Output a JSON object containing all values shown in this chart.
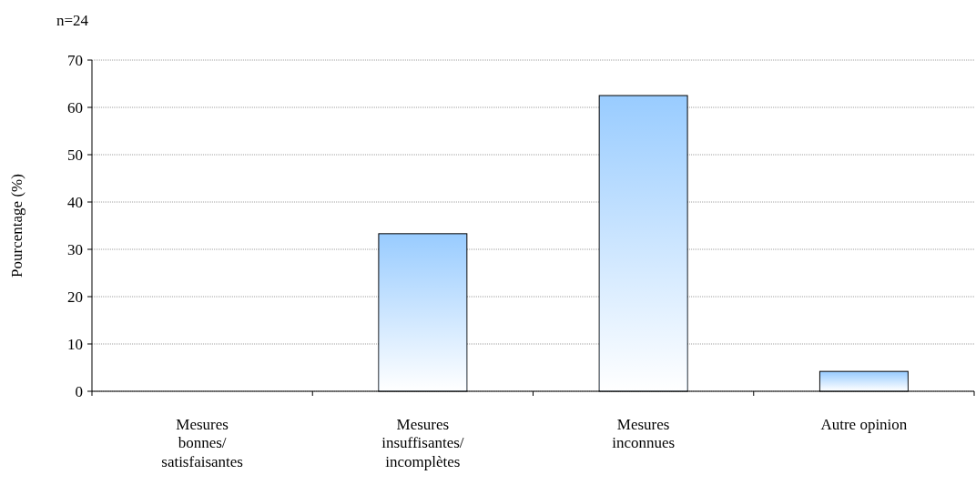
{
  "chart_data": {
    "type": "bar",
    "title": "n=24",
    "ylabel": "Pourcentage (%)",
    "categories": [
      "Mesures bonnes/ satisfaisantes",
      "Mesures insuffisantes/ incomplètes",
      "Mesures inconnues",
      "Autre opinion"
    ],
    "values": [
      0,
      33.3,
      62.5,
      4.2
    ],
    "color": "#99ccff",
    "ylim": [
      0,
      70
    ],
    "yticks": [
      0,
      10,
      20,
      30,
      40,
      50,
      60,
      70
    ],
    "grid": "y"
  }
}
